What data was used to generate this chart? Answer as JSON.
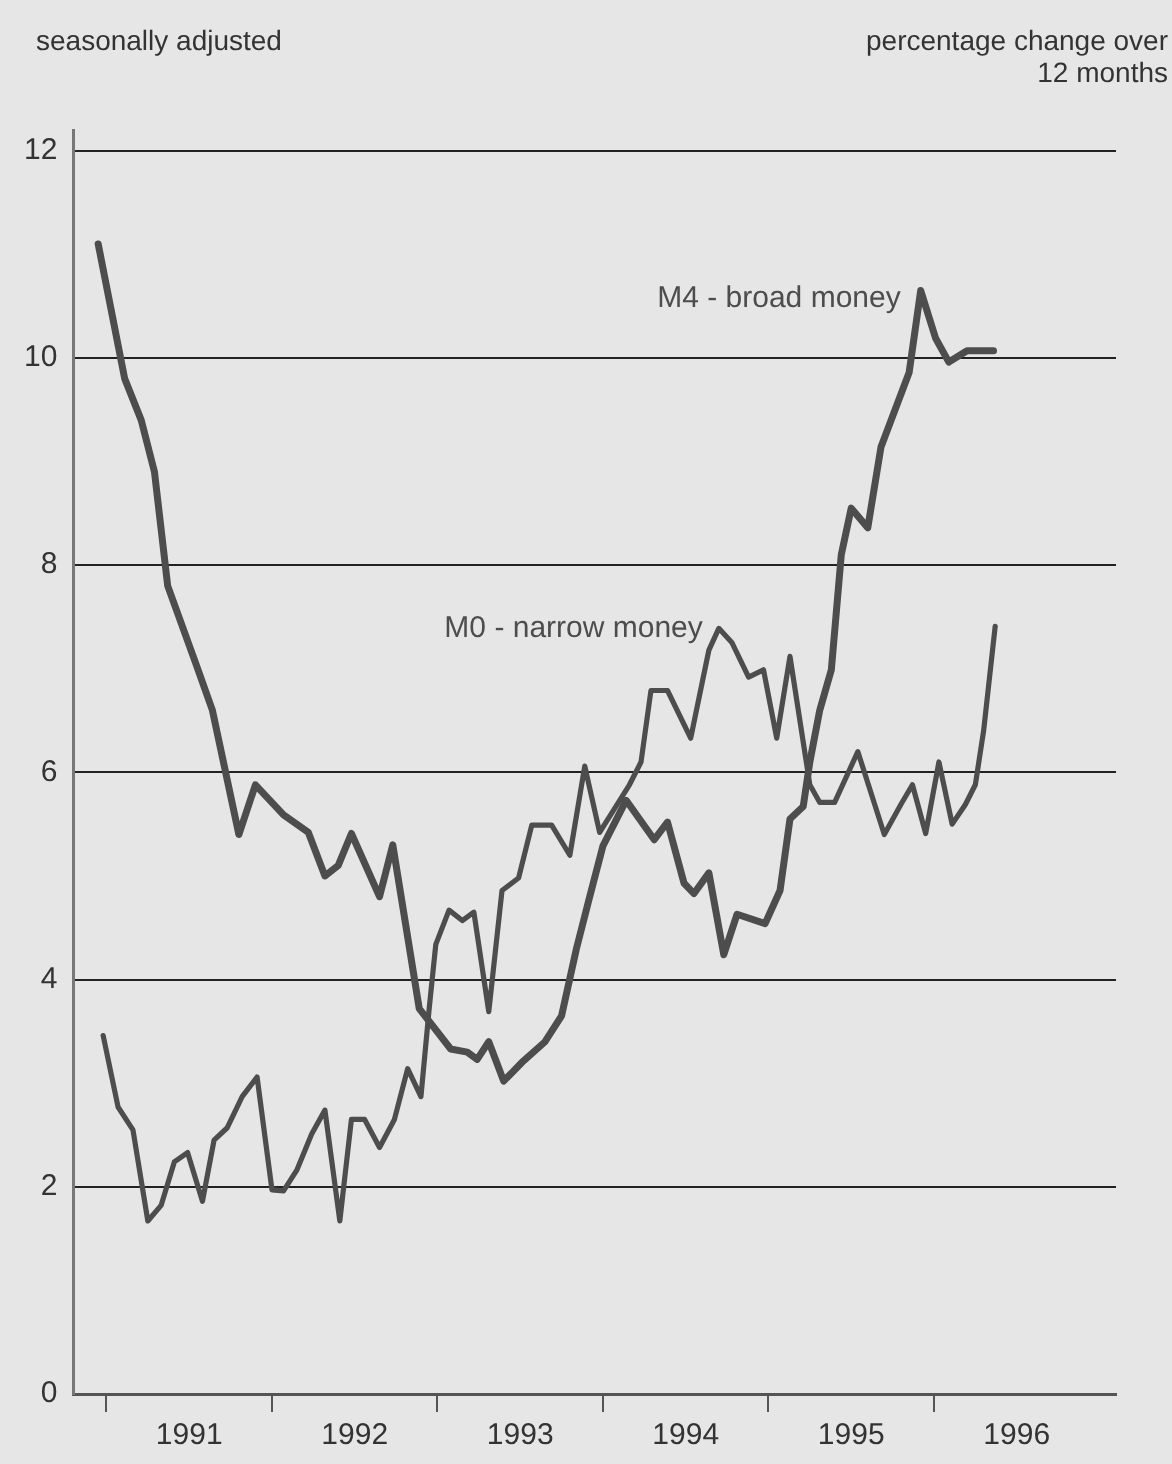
{
  "chart_data": {
    "type": "line",
    "subtitle": "seasonally adjusted",
    "ylabel": "percentage change over 12 months",
    "xlim": [
      1990.8,
      1997.1
    ],
    "xticks": [
      {
        "value": 1991,
        "label": null
      },
      {
        "value": 1991.5,
        "label": "1991"
      },
      {
        "value": 1992,
        "label": null
      },
      {
        "value": 1992.5,
        "label": "1992"
      },
      {
        "value": 1993,
        "label": null
      },
      {
        "value": 1993.5,
        "label": "1993"
      },
      {
        "value": 1994,
        "label": null
      },
      {
        "value": 1994.5,
        "label": "1994"
      },
      {
        "value": 1995,
        "label": null
      },
      {
        "value": 1995.5,
        "label": "1995"
      },
      {
        "value": 1996,
        "label": null
      },
      {
        "value": 1996.5,
        "label": "1996"
      }
    ],
    "ylim": [
      0,
      12.2
    ],
    "yticks": [
      0,
      2,
      4,
      6,
      8,
      10,
      12
    ],
    "grid": "y",
    "legend": false,
    "marker": "none",
    "line_style": "solid",
    "series": [
      {
        "name": "M4 - broad money",
        "color": "#4d4d4d",
        "x": [
          1990.95,
          1991.11,
          1991.21,
          1991.29,
          1991.37,
          1991.54,
          1991.64,
          1991.8,
          1991.9,
          1992.07,
          1992.22,
          1992.32,
          1992.4,
          1992.48,
          1992.65,
          1992.73,
          1992.89,
          1993.08,
          1993.18,
          1993.24,
          1993.31,
          1993.4,
          1993.51,
          1993.65,
          1993.75,
          1993.84,
          1993.92,
          1994.0,
          1994.14,
          1994.31,
          1994.39,
          1994.49,
          1994.55,
          1994.64,
          1994.73,
          1994.81,
          1994.98,
          1995.07,
          1995.13,
          1995.21,
          1995.25,
          1995.31,
          1995.38,
          1995.44,
          1995.5,
          1995.6,
          1995.68,
          1995.85,
          1995.92,
          1996.01,
          1996.09,
          1996.2,
          1996.36
        ],
        "values": [
          11.1,
          9.8,
          9.4,
          8.9,
          7.8,
          7.05,
          6.6,
          5.4,
          5.88,
          5.59,
          5.42,
          5.0,
          5.1,
          5.41,
          4.8,
          5.3,
          3.72,
          3.33,
          3.3,
          3.23,
          3.4,
          3.02,
          3.2,
          3.4,
          3.65,
          4.3,
          4.8,
          5.29,
          5.73,
          5.35,
          5.52,
          4.93,
          4.83,
          5.03,
          4.24,
          4.63,
          4.54,
          4.86,
          5.55,
          5.67,
          6.1,
          6.6,
          6.99,
          8.1,
          8.55,
          8.36,
          9.14,
          9.86,
          10.65,
          10.19,
          9.96,
          10.07,
          10.07
        ]
      },
      {
        "name": "M0 - narrow money",
        "color": "#4d4d4d",
        "x": [
          1990.98,
          1991.07,
          1991.16,
          1991.25,
          1991.33,
          1991.41,
          1991.49,
          1991.58,
          1991.65,
          1991.73,
          1991.82,
          1991.91,
          1992.0,
          1992.07,
          1992.15,
          1992.24,
          1992.32,
          1992.41,
          1992.48,
          1992.56,
          1992.65,
          1992.74,
          1992.82,
          1992.9,
          1992.95,
          1992.99,
          1993.07,
          1993.15,
          1993.22,
          1993.31,
          1993.39,
          1993.49,
          1993.57,
          1993.69,
          1993.8,
          1993.89,
          1993.98,
          1994.16,
          1994.23,
          1994.29,
          1994.39,
          1994.53,
          1994.64,
          1994.7,
          1994.78,
          1994.88,
          1994.97,
          1995.05,
          1995.13,
          1995.25,
          1995.31,
          1995.4,
          1995.54,
          1995.7,
          1995.8,
          1995.87,
          1995.95,
          1996.03,
          1996.11,
          1996.19,
          1996.25,
          1996.3,
          1996.37
        ],
        "values": [
          3.46,
          2.77,
          2.55,
          1.67,
          1.82,
          2.24,
          2.33,
          1.86,
          2.45,
          2.57,
          2.87,
          3.06,
          1.97,
          1.96,
          2.16,
          2.51,
          2.74,
          1.67,
          2.65,
          2.65,
          2.38,
          2.65,
          3.14,
          2.87,
          3.72,
          4.34,
          4.67,
          4.57,
          4.65,
          3.69,
          4.86,
          4.98,
          5.49,
          5.49,
          5.2,
          6.06,
          5.42,
          5.88,
          6.1,
          6.79,
          6.79,
          6.33,
          7.18,
          7.39,
          7.25,
          6.92,
          6.99,
          6.33,
          7.12,
          5.88,
          5.71,
          5.71,
          6.2,
          5.4,
          5.69,
          5.88,
          5.41,
          6.1,
          5.5,
          5.69,
          5.88,
          6.4,
          7.41
        ]
      }
    ]
  }
}
